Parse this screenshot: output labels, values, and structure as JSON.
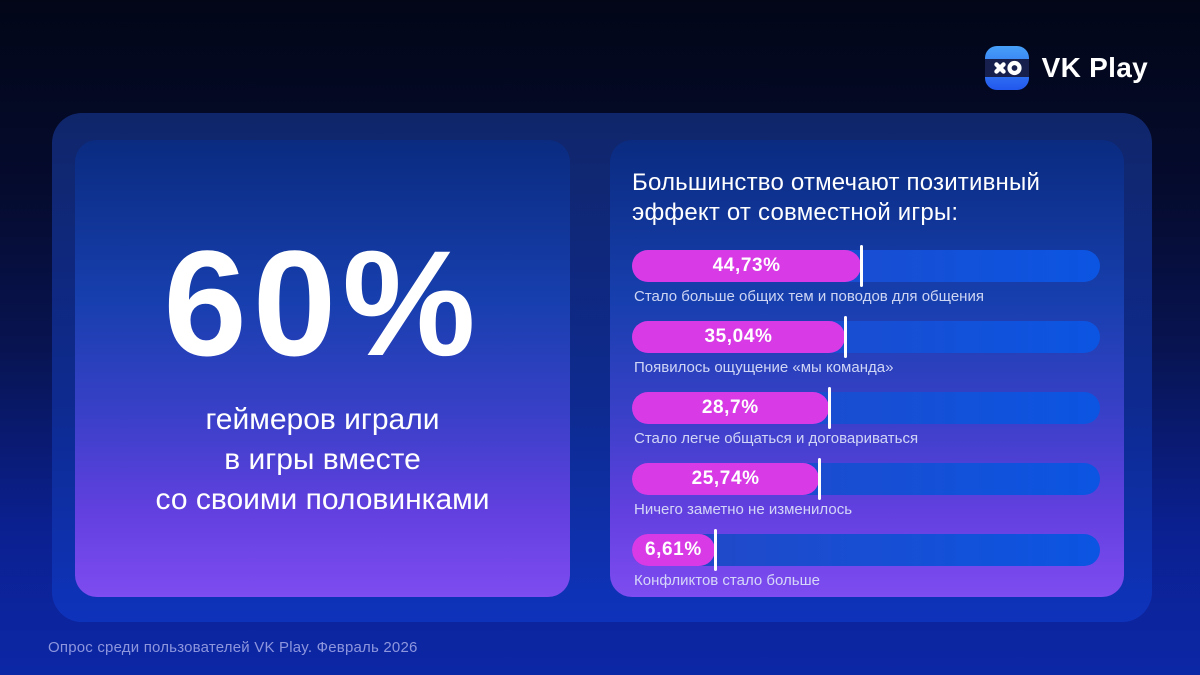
{
  "brand": {
    "name": "VK Play",
    "icon": "vk-play-gamepad-xo"
  },
  "left_card": {
    "stat_value": "60%",
    "caption_lines": [
      "геймеров играли",
      "в игры вместе",
      "со своими половинками"
    ]
  },
  "right_card": {
    "title_lines": [
      "Большинство отмечают позитивный",
      "эффект от совместной игры:"
    ]
  },
  "chart_data": {
    "type": "bar",
    "orientation": "horizontal",
    "title": "Большинство отмечают позитивный эффект от совместной игры:",
    "value_suffix": "%",
    "bars": [
      {
        "label": "Стало больше общих тем и поводов для общения",
        "value": 44.73,
        "value_text": "44,73%",
        "fill_pct": 49
      },
      {
        "label": "Появилось ощущение «мы команда»",
        "value": 35.04,
        "value_text": "35,04%",
        "fill_pct": 45.5
      },
      {
        "label": "Стало легче общаться и договариваться",
        "value": 28.7,
        "value_text": "28,7%",
        "fill_pct": 42
      },
      {
        "label": "Ничего заметно не изменилось",
        "value": 25.74,
        "value_text": "25,74%",
        "fill_pct": 40
      },
      {
        "label": "Конфликтов стало больше",
        "value": 6.61,
        "value_text": "6,61%",
        "fill_pct": 17.7
      }
    ],
    "colors": {
      "bar_fill": "#d83ae6",
      "bar_track_start": "#2447c4",
      "bar_track_end": "#0b55e2",
      "card_top": "#0a2b80",
      "card_bottom": "#7e4cf0",
      "background_bottom": "#0c27a6"
    },
    "legend": "none",
    "grid": "off"
  },
  "footer": {
    "text": "Опрос среди пользователей VK Play. Февраль 2026"
  }
}
